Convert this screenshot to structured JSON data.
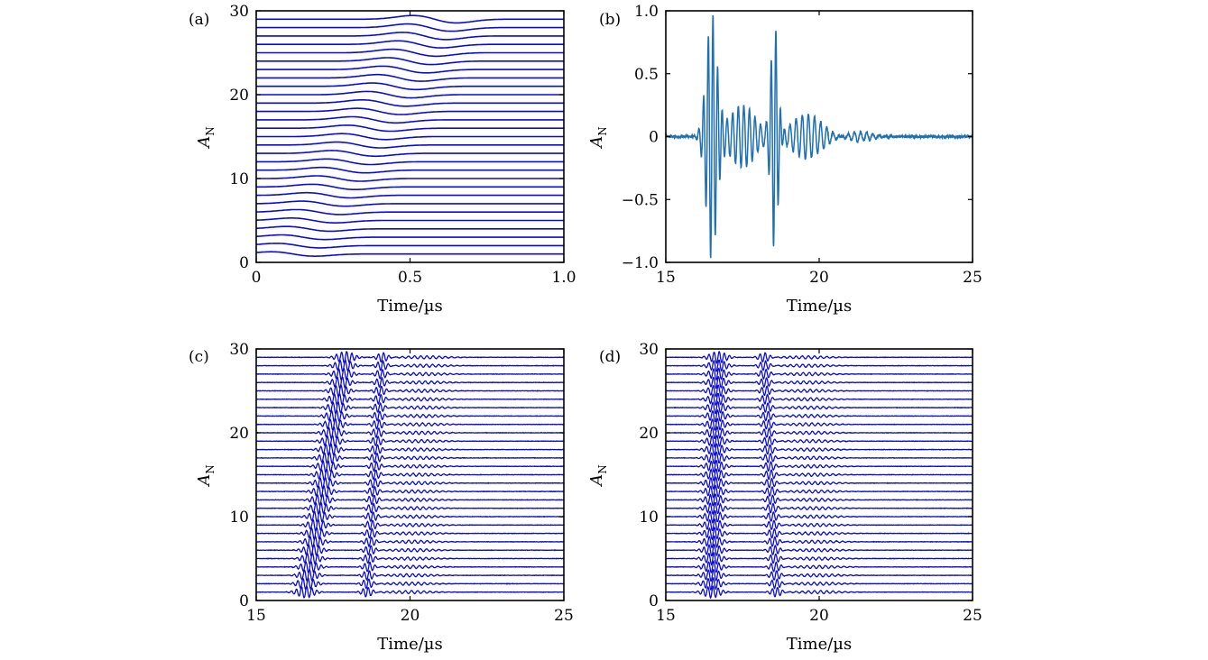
{
  "chart_data": [
    {
      "panel": "(a)",
      "type": "line",
      "style": "waterfall",
      "xlabel": "Time/µs",
      "ylabel_main": "A",
      "ylabel_sub": "N",
      "xlim": [
        0,
        1.0
      ],
      "ylim": [
        0,
        30
      ],
      "xticks": [
        "0",
        "0.5",
        "1.0"
      ],
      "yticks": [
        "0",
        "10",
        "20",
        "30"
      ],
      "xtick_values": [
        0,
        0.5,
        1.0
      ],
      "ytick_values": [
        0,
        10,
        20,
        30
      ],
      "color": "#0b0bd6",
      "grid": false,
      "series": [
        {
          "offsets": [
            1,
            2,
            3,
            4,
            5,
            6,
            7,
            8,
            9,
            10,
            11,
            12,
            13,
            14,
            15,
            16,
            17,
            18,
            19,
            20,
            21,
            22,
            23,
            24,
            25,
            26,
            27,
            28,
            29
          ],
          "arrival_first": 0.12,
          "arrival_last": 0.58,
          "pulse_amplitude": 1.4
        }
      ]
    },
    {
      "panel": "(b)",
      "type": "line",
      "xlabel": "Time/µs",
      "ylabel_main": "A",
      "ylabel_sub": "N",
      "xlim": [
        15,
        25
      ],
      "ylim": [
        -1.0,
        1.0
      ],
      "xticks": [
        "15",
        "20",
        "25"
      ],
      "yticks": [
        "−1.0",
        "−0.5",
        "0",
        "0.5",
        "1.0"
      ],
      "xtick_values": [
        15,
        20,
        25
      ],
      "ytick_values": [
        -1.0,
        -0.5,
        0,
        0.5,
        1.0
      ],
      "color": "#1f6fb4",
      "grid": false,
      "series": [
        {
          "packets": [
            {
              "t0": 16.5,
              "amp": 1.0,
              "width": 0.25,
              "freq": 6.5
            },
            {
              "t0": 17.5,
              "amp": 0.25,
              "width": 0.6,
              "freq": 5.5
            },
            {
              "t0": 18.55,
              "amp": 0.9,
              "width": 0.17,
              "freq": 6.5
            },
            {
              "t0": 19.6,
              "amp": 0.18,
              "width": 0.7,
              "freq": 5.0
            },
            {
              "t0": 21.3,
              "amp": 0.04,
              "width": 0.6,
              "freq": 5.0
            }
          ]
        }
      ]
    },
    {
      "panel": "(c)",
      "type": "line",
      "style": "waterfall",
      "xlabel": "Time/µs",
      "ylabel_main": "A",
      "ylabel_sub": "N",
      "xlim": [
        15,
        25
      ],
      "ylim": [
        0,
        30
      ],
      "xticks": [
        "15",
        "20",
        "25"
      ],
      "yticks": [
        "0",
        "10",
        "20",
        "30"
      ],
      "xtick_values": [
        15,
        20,
        25
      ],
      "ytick_values": [
        0,
        10,
        20,
        30
      ],
      "color": "#0b0bd6",
      "grid": false,
      "series": [
        {
          "offsets": [
            1,
            2,
            3,
            4,
            5,
            6,
            7,
            8,
            9,
            10,
            11,
            12,
            13,
            14,
            15,
            16,
            17,
            18,
            19,
            20,
            21,
            22,
            23,
            24,
            25,
            26,
            27,
            28,
            29
          ],
          "first_arrival_start": 16.6,
          "first_arrival_end": 17.9,
          "second_arrival_start": 18.6,
          "second_arrival_end": 19.1
        }
      ]
    },
    {
      "panel": "(d)",
      "type": "line",
      "style": "waterfall",
      "xlabel": "Time/µs",
      "ylabel_main": "A",
      "ylabel_sub": "N",
      "xlim": [
        15,
        25
      ],
      "ylim": [
        0,
        30
      ],
      "xticks": [
        "15",
        "20",
        "25"
      ],
      "yticks": [
        "0",
        "10",
        "20",
        "30"
      ],
      "xtick_values": [
        15,
        20,
        25
      ],
      "ytick_values": [
        0,
        10,
        20,
        30
      ],
      "color": "#0b0bd6",
      "grid": false,
      "series": [
        {
          "offsets": [
            1,
            2,
            3,
            4,
            5,
            6,
            7,
            8,
            9,
            10,
            11,
            12,
            13,
            14,
            15,
            16,
            17,
            18,
            19,
            20,
            21,
            22,
            23,
            24,
            25,
            26,
            27,
            28,
            29
          ],
          "first_arrival_start": 16.5,
          "first_arrival_end": 16.7,
          "second_arrival_start": 18.6,
          "second_arrival_end": 18.2
        }
      ]
    }
  ]
}
